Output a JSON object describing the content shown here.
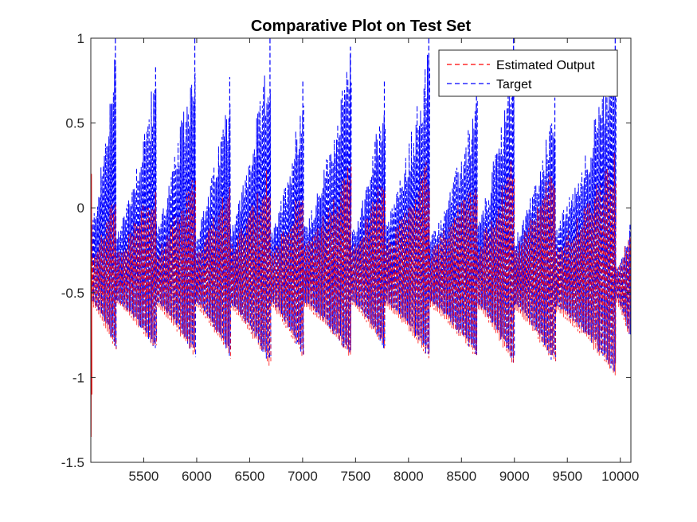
{
  "chart_data": {
    "type": "line",
    "title": "Comparative Plot on Test Set",
    "xlabel": "",
    "ylabel": "",
    "xlim": [
      5000,
      10100
    ],
    "ylim": [
      -1.5,
      1
    ],
    "x_ticks": [
      5500,
      6000,
      6500,
      7000,
      7500,
      8000,
      8500,
      9000,
      9500,
      10000
    ],
    "y_ticks": [
      1,
      0.5,
      0,
      -0.5,
      -1,
      -1.5
    ],
    "y_tick_labels": [
      "1",
      "0.5",
      "0",
      "-0.5",
      "-1",
      "-1.5"
    ],
    "grid": false,
    "legend_position": "top-right",
    "series": [
      {
        "name": "Estimated Output",
        "color": "#ff0000",
        "style": "dashed"
      },
      {
        "name": "Target",
        "color": "#0000ff",
        "style": "dashed"
      }
    ],
    "segments": [
      {
        "x_start": 5000,
        "x_end": 5240,
        "estimated_range": [
          -0.85,
          0.15
        ],
        "target_range": [
          -0.85,
          1.0
        ],
        "target_peak": 1.0
      },
      {
        "x_start": 5240,
        "x_end": 5620,
        "estimated_range": [
          -0.85,
          0.2
        ],
        "target_range": [
          -0.85,
          0.85
        ],
        "target_peak": 0.84
      },
      {
        "x_start": 5620,
        "x_end": 5990,
        "estimated_range": [
          -0.9,
          0.25
        ],
        "target_range": [
          -0.9,
          1.0
        ],
        "target_peak": 1.0
      },
      {
        "x_start": 5990,
        "x_end": 6320,
        "estimated_range": [
          -0.9,
          0.2
        ],
        "target_range": [
          -0.9,
          0.77
        ],
        "target_peak": 0.77
      },
      {
        "x_start": 6320,
        "x_end": 6700,
        "estimated_range": [
          -0.95,
          0.3
        ],
        "target_range": [
          -0.95,
          1.0
        ],
        "target_peak": 1.0
      },
      {
        "x_start": 6700,
        "x_end": 7010,
        "estimated_range": [
          -0.9,
          0.2
        ],
        "target_range": [
          -0.9,
          0.75
        ],
        "target_peak": 0.75
      },
      {
        "x_start": 7010,
        "x_end": 7460,
        "estimated_range": [
          -0.9,
          0.3
        ],
        "target_range": [
          -0.9,
          0.95
        ],
        "target_peak": 0.95
      },
      {
        "x_start": 7460,
        "x_end": 7780,
        "estimated_range": [
          -0.85,
          0.25
        ],
        "target_range": [
          -0.85,
          0.75
        ],
        "target_peak": 0.75
      },
      {
        "x_start": 7780,
        "x_end": 8200,
        "estimated_range": [
          -0.9,
          0.35
        ],
        "target_range": [
          -0.9,
          1.0
        ],
        "target_peak": 1.0
      },
      {
        "x_start": 8200,
        "x_end": 8650,
        "estimated_range": [
          -0.9,
          0.25
        ],
        "target_range": [
          -0.9,
          0.68
        ],
        "target_peak": 0.68
      },
      {
        "x_start": 8650,
        "x_end": 9000,
        "estimated_range": [
          -0.95,
          0.35
        ],
        "target_range": [
          -0.95,
          1.0
        ],
        "target_peak": 1.0
      },
      {
        "x_start": 9000,
        "x_end": 9390,
        "estimated_range": [
          -0.95,
          0.3
        ],
        "target_range": [
          -0.95,
          0.65
        ],
        "target_peak": 0.65
      },
      {
        "x_start": 9390,
        "x_end": 9960,
        "estimated_range": [
          -1.0,
          0.35
        ],
        "target_range": [
          -1.0,
          1.0
        ],
        "target_peak": 1.0
      },
      {
        "x_start": 9960,
        "x_end": 10100,
        "estimated_range": [
          -0.8,
          -0.1
        ],
        "target_range": [
          -0.8,
          -0.1
        ],
        "target_peak": -0.1
      }
    ]
  }
}
